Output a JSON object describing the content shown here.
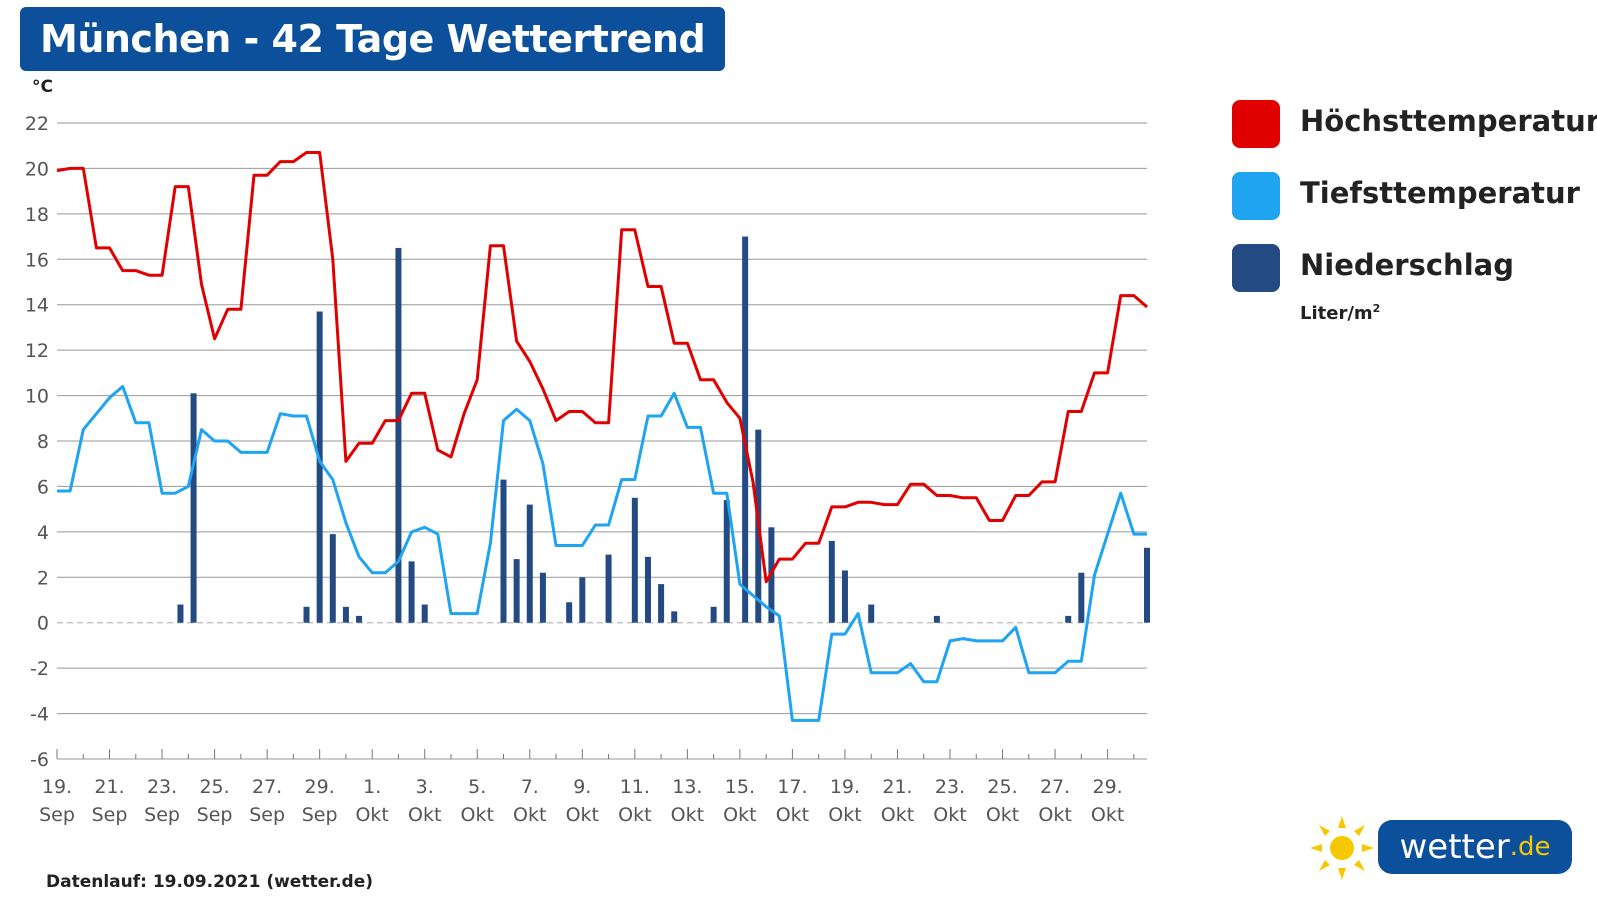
{
  "title": "München - 42 Tage Wettertrend",
  "footer": "Datenlauf: 19.09.2021 (wetter.de)",
  "legend": {
    "items": [
      {
        "label": "Höchsttemperatur",
        "color": "#e00000"
      },
      {
        "label": "Tiefsttemperatur",
        "color": "#1ea4f0"
      },
      {
        "label": "Niederschlag",
        "color": "#234a82"
      }
    ],
    "unit_text": "Liter/m",
    "unit_sup": "2"
  },
  "logo": {
    "name": "wetter",
    "tld": ".de",
    "icon": "sun-icon"
  },
  "chart_data": {
    "type": "line",
    "ylabel": "°C",
    "ylim": [
      -6,
      22
    ],
    "yticks": [
      22,
      20,
      18,
      16,
      14,
      12,
      10,
      8,
      6,
      4,
      2,
      0,
      -2,
      -4,
      -6
    ],
    "xtick_labels": [
      [
        "19.",
        "Sep"
      ],
      [
        "21.",
        "Sep"
      ],
      [
        "23.",
        "Sep"
      ],
      [
        "25.",
        "Sep"
      ],
      [
        "27.",
        "Sep"
      ],
      [
        "29.",
        "Sep"
      ],
      [
        "1.",
        "Okt"
      ],
      [
        "3.",
        "Okt"
      ],
      [
        "5.",
        "Okt"
      ],
      [
        "7.",
        "Okt"
      ],
      [
        "9.",
        "Okt"
      ],
      [
        "11.",
        "Okt"
      ],
      [
        "13.",
        "Okt"
      ],
      [
        "15.",
        "Okt"
      ],
      [
        "17.",
        "Okt"
      ],
      [
        "19.",
        "Okt"
      ],
      [
        "21.",
        "Okt"
      ],
      [
        "23.",
        "Okt"
      ],
      [
        "25.",
        "Okt"
      ],
      [
        "27.",
        "Okt"
      ],
      [
        "29.",
        "Okt"
      ]
    ],
    "grid": true,
    "series": [
      {
        "name": "Höchsttemperatur",
        "color": "#e00000",
        "values": [
          [
            0,
            19.9
          ],
          [
            0.5,
            20
          ],
          [
            1,
            20
          ],
          [
            1.5,
            16.5
          ],
          [
            2,
            16.5
          ],
          [
            2.5,
            15.5
          ],
          [
            3,
            15.5
          ],
          [
            3.5,
            15.3
          ],
          [
            4,
            15.3
          ],
          [
            4.5,
            19.2
          ],
          [
            5,
            19.2
          ],
          [
            5.5,
            14.9
          ],
          [
            6,
            12.5
          ],
          [
            6.5,
            13.8
          ],
          [
            7,
            13.8
          ],
          [
            7.5,
            19.7
          ],
          [
            8,
            19.7
          ],
          [
            8.5,
            20.3
          ],
          [
            9,
            20.3
          ],
          [
            9.5,
            20.7
          ],
          [
            10,
            20.7
          ],
          [
            10.5,
            16
          ],
          [
            11,
            7.1
          ],
          [
            11.5,
            7.9
          ],
          [
            12,
            7.9
          ],
          [
            12.5,
            8.9
          ],
          [
            13,
            8.9
          ],
          [
            13.5,
            10.1
          ],
          [
            14,
            10.1
          ],
          [
            14.5,
            7.6
          ],
          [
            15,
            7.3
          ],
          [
            15.5,
            9.2
          ],
          [
            16,
            10.7
          ],
          [
            16.5,
            16.6
          ],
          [
            17,
            16.6
          ],
          [
            17.5,
            12.4
          ],
          [
            18,
            11.5
          ],
          [
            18.5,
            10.3
          ],
          [
            19,
            8.9
          ],
          [
            19.5,
            9.3
          ],
          [
            20,
            9.3
          ],
          [
            20.5,
            8.8
          ],
          [
            21,
            8.8
          ],
          [
            21.5,
            17.3
          ],
          [
            22,
            17.3
          ],
          [
            22.5,
            14.8
          ],
          [
            23,
            14.8
          ],
          [
            23.5,
            12.3
          ],
          [
            24,
            12.3
          ],
          [
            24.5,
            10.7
          ],
          [
            25,
            10.7
          ],
          [
            25.5,
            9.7
          ],
          [
            26,
            9
          ],
          [
            26.5,
            6.2
          ],
          [
            27,
            1.8
          ],
          [
            27.5,
            2.8
          ],
          [
            28,
            2.8
          ],
          [
            28.5,
            3.5
          ],
          [
            29,
            3.5
          ],
          [
            29.5,
            5.1
          ],
          [
            30,
            5.1
          ],
          [
            30.5,
            5.3
          ],
          [
            31,
            5.3
          ],
          [
            31.5,
            5.2
          ],
          [
            32,
            5.2
          ],
          [
            32.5,
            6.1
          ],
          [
            33,
            6.1
          ],
          [
            33.5,
            5.6
          ],
          [
            34,
            5.6
          ],
          [
            34.5,
            5.5
          ],
          [
            35,
            5.5
          ],
          [
            35.5,
            4.5
          ],
          [
            36,
            4.5
          ],
          [
            36.5,
            5.6
          ],
          [
            37,
            5.6
          ],
          [
            37.5,
            6.2
          ],
          [
            38,
            6.2
          ],
          [
            38.5,
            9.3
          ],
          [
            39,
            9.3
          ],
          [
            39.5,
            11
          ],
          [
            40,
            11
          ],
          [
            40.5,
            14.4
          ],
          [
            41,
            14.4
          ],
          [
            41.5,
            13.9
          ]
        ]
      },
      {
        "name": "Tiefsttemperatur",
        "color": "#1ea4f0",
        "values": [
          [
            0,
            5.8
          ],
          [
            0.5,
            5.8
          ],
          [
            1,
            8.5
          ],
          [
            1.5,
            9.2
          ],
          [
            2,
            9.9
          ],
          [
            2.5,
            10.4
          ],
          [
            3,
            8.8
          ],
          [
            3.5,
            8.8
          ],
          [
            4,
            5.7
          ],
          [
            4.5,
            5.7
          ],
          [
            5,
            6
          ],
          [
            5.5,
            8.5
          ],
          [
            6,
            8
          ],
          [
            6.5,
            8
          ],
          [
            7,
            7.5
          ],
          [
            7.5,
            7.5
          ],
          [
            8,
            7.5
          ],
          [
            8.5,
            9.2
          ],
          [
            9,
            9.1
          ],
          [
            9.5,
            9.1
          ],
          [
            10,
            7.1
          ],
          [
            10.5,
            6.3
          ],
          [
            11,
            4.4
          ],
          [
            11.5,
            2.9
          ],
          [
            12,
            2.2
          ],
          [
            12.5,
            2.2
          ],
          [
            13,
            2.7
          ],
          [
            13.5,
            4
          ],
          [
            14,
            4.2
          ],
          [
            14.5,
            3.9
          ],
          [
            15,
            0.4
          ],
          [
            15.5,
            0.4
          ],
          [
            16,
            0.4
          ],
          [
            16.5,
            3.5
          ],
          [
            17,
            8.9
          ],
          [
            17.5,
            9.4
          ],
          [
            18,
            8.9
          ],
          [
            18.5,
            7
          ],
          [
            19,
            3.4
          ],
          [
            19.5,
            3.4
          ],
          [
            20,
            3.4
          ],
          [
            20.5,
            4.3
          ],
          [
            21,
            4.3
          ],
          [
            21.5,
            6.3
          ],
          [
            22,
            6.3
          ],
          [
            22.5,
            9.1
          ],
          [
            23,
            9.1
          ],
          [
            23.5,
            10.1
          ],
          [
            24,
            8.6
          ],
          [
            24.5,
            8.6
          ],
          [
            25,
            5.7
          ],
          [
            25.5,
            5.7
          ],
          [
            26,
            1.7
          ],
          [
            26.5,
            1.2
          ],
          [
            27,
            0.7
          ],
          [
            27.5,
            0.3
          ],
          [
            28,
            -4.3
          ],
          [
            28.5,
            -4.3
          ],
          [
            29,
            -4.3
          ],
          [
            29.5,
            -0.5
          ],
          [
            30,
            -0.5
          ],
          [
            30.5,
            0.4
          ],
          [
            31,
            -2.2
          ],
          [
            31.5,
            -2.2
          ],
          [
            32,
            -2.2
          ],
          [
            32.5,
            -1.8
          ],
          [
            33,
            -2.6
          ],
          [
            33.5,
            -2.6
          ],
          [
            34,
            -0.8
          ],
          [
            34.5,
            -0.7
          ],
          [
            35,
            -0.8
          ],
          [
            35.5,
            -0.8
          ],
          [
            36,
            -0.8
          ],
          [
            36.5,
            -0.2
          ],
          [
            37,
            -2.2
          ],
          [
            37.5,
            -2.2
          ],
          [
            38,
            -2.2
          ],
          [
            38.5,
            -1.7
          ],
          [
            39,
            -1.7
          ],
          [
            39.5,
            2.1
          ],
          [
            40,
            3.9
          ],
          [
            40.5,
            5.7
          ],
          [
            41,
            3.9
          ],
          [
            41.5,
            3.9
          ]
        ]
      },
      {
        "name": "Niederschlag",
        "color": "#234a82",
        "type": "bar",
        "values": [
          [
            4.7,
            0.8
          ],
          [
            5.2,
            10.1
          ],
          [
            9.5,
            0.7
          ],
          [
            10,
            13.7
          ],
          [
            10.5,
            3.9
          ],
          [
            11,
            0.7
          ],
          [
            11.5,
            0.3
          ],
          [
            13,
            16.5
          ],
          [
            13.5,
            2.7
          ],
          [
            14,
            0.8
          ],
          [
            17,
            6.3
          ],
          [
            17.5,
            2.8
          ],
          [
            18,
            5.2
          ],
          [
            18.5,
            2.2
          ],
          [
            19.5,
            0.9
          ],
          [
            20,
            2
          ],
          [
            21,
            3
          ],
          [
            22,
            5.5
          ],
          [
            22.5,
            2.9
          ],
          [
            23,
            1.7
          ],
          [
            23.5,
            0.5
          ],
          [
            25,
            0.7
          ],
          [
            25.5,
            5.4
          ],
          [
            26.2,
            17
          ],
          [
            26.7,
            8.5
          ],
          [
            27.2,
            4.2
          ],
          [
            29.5,
            3.6
          ],
          [
            30,
            2.3
          ],
          [
            31,
            0.8
          ],
          [
            33.5,
            0.3
          ],
          [
            38.5,
            0.3
          ],
          [
            39,
            2.2
          ],
          [
            41.5,
            3.3
          ]
        ]
      }
    ]
  }
}
